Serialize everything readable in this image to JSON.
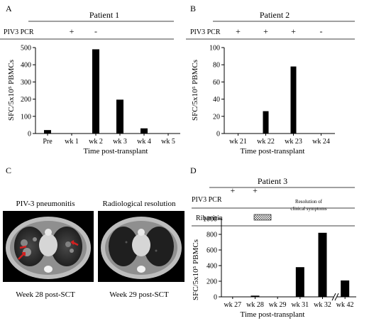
{
  "panels": {
    "a": "A",
    "b": "B",
    "c": "C",
    "d": "D"
  },
  "pcr_label": "PIV3 PCR",
  "ribavirin_label": "Ribavirin",
  "resolution_note": [
    "Resolution of",
    "clinical symptoms"
  ],
  "ct": {
    "left_title": "PIV-3 pneumonitis",
    "right_title": "Radiological resolution",
    "left_caption": "Week 28 post-SCT",
    "right_caption": "Week 29 post-SCT"
  },
  "chart_data": [
    {
      "id": "patient1",
      "type": "bar",
      "title": "Patient 1",
      "xlabel": "Time post-transplant",
      "ylabel": "SFC/5x10⁵ PBMCs",
      "categories": [
        "Pre",
        "wk 1",
        "wk 2",
        "wk 3",
        "wk 4",
        "wk 5"
      ],
      "values": [
        20,
        0,
        490,
        197,
        30,
        0
      ],
      "ylim": [
        0,
        500
      ],
      "yticks": [
        0,
        100,
        200,
        300,
        400,
        500
      ],
      "pcr": [
        "",
        "+",
        "-",
        "",
        "",
        ""
      ]
    },
    {
      "id": "patient2",
      "type": "bar",
      "title": "Patient 2",
      "xlabel": "Time post-transplant",
      "ylabel": "SFC/5x10⁵ PBMCs",
      "categories": [
        "wk 21",
        "wk 22",
        "wk 23",
        "wk 24"
      ],
      "values": [
        0,
        26,
        78,
        0
      ],
      "ylim": [
        0,
        100
      ],
      "yticks": [
        0,
        20,
        40,
        60,
        80,
        100
      ],
      "pcr": [
        "+",
        "+",
        "+",
        "-"
      ]
    },
    {
      "id": "patient3",
      "type": "bar",
      "title": "Patient 3",
      "xlabel": "Time post-transplant",
      "ylabel": "SFC/5x10⁵ PBMCs",
      "categories": [
        "wk 27",
        "wk 28",
        "wk 29",
        "wk 31",
        "wk 32",
        "wk 42"
      ],
      "values": [
        0,
        15,
        0,
        380,
        820,
        210
      ],
      "ylim": [
        0,
        1000
      ],
      "yticks": [
        0,
        200,
        400,
        600,
        800,
        1000
      ],
      "pcr": [
        "+",
        "+",
        "",
        "",
        "",
        ""
      ],
      "axis_break_after": "wk 32"
    }
  ]
}
